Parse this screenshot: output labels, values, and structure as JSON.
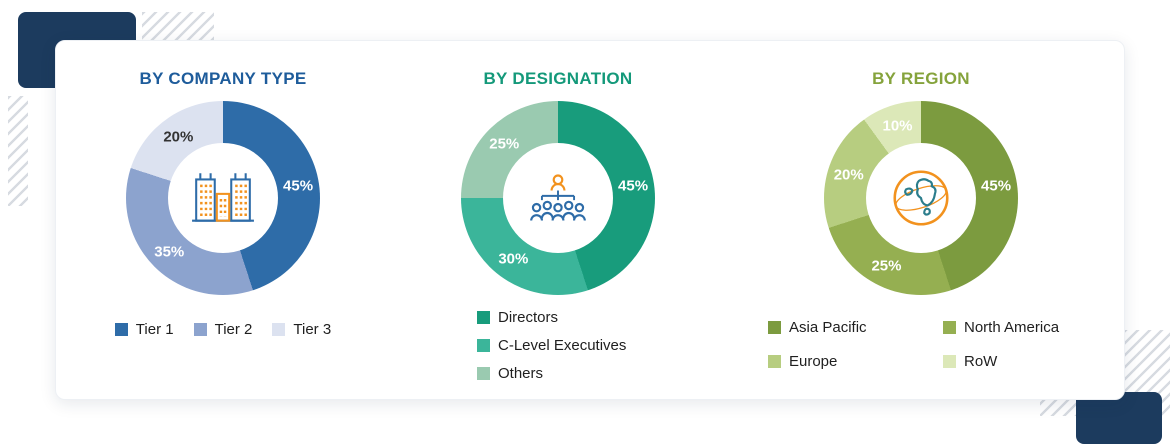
{
  "decor": {
    "navy_color": "#1c3b5e",
    "hatch_color": "#d7dbe1"
  },
  "chart_data": [
    {
      "type": "pie",
      "title": "BY COMPANY TYPE",
      "title_color": "#1e5c9b",
      "donut": true,
      "center_icon": "buildings-icon",
      "legend_layout": "horizontal",
      "labels": [
        "Tier 1",
        "Tier 2",
        "Tier 3"
      ],
      "values": [
        45,
        35,
        20
      ],
      "colors": [
        "#2e6ca8",
        "#8ca3ce",
        "#dce2f0"
      ],
      "pct_label_colors": [
        "#ffffff",
        "#ffffff",
        "#333333"
      ]
    },
    {
      "type": "pie",
      "title": "BY DESIGNATION",
      "title_color": "#14997a",
      "donut": true,
      "center_icon": "org-chart-icon",
      "legend_layout": "vertical",
      "labels": [
        "Directors",
        "C-Level Executives",
        "Others"
      ],
      "values": [
        45,
        30,
        25
      ],
      "colors": [
        "#189c7c",
        "#3bb59a",
        "#9acaB0"
      ],
      "pct_label_colors": [
        "#ffffff",
        "#ffffff",
        "#ffffff"
      ]
    },
    {
      "type": "pie",
      "title": "BY REGION",
      "title_color": "#85a33c",
      "donut": true,
      "center_icon": "globe-icon",
      "legend_layout": "grid",
      "labels": [
        "Asia Pacific",
        "North America",
        "Europe",
        "RoW"
      ],
      "values": [
        45,
        25,
        20,
        10
      ],
      "colors": [
        "#7c9b3f",
        "#95af51",
        "#b7cd80",
        "#dce8b8"
      ],
      "pct_label_colors": [
        "#ffffff",
        "#ffffff",
        "#ffffff",
        "#ffffff"
      ]
    }
  ]
}
